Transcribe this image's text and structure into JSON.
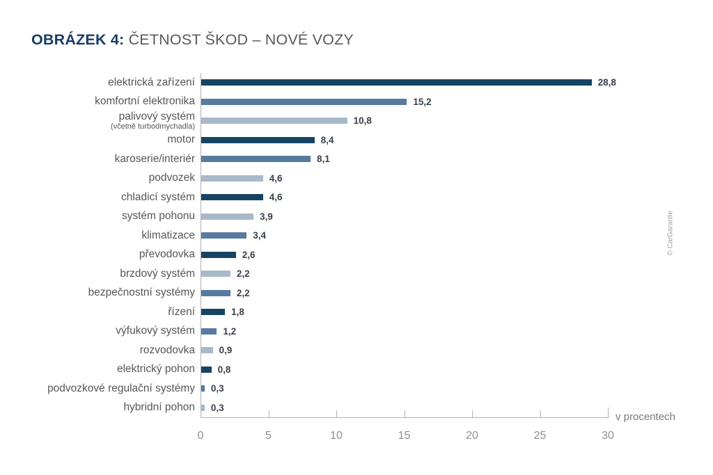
{
  "title": {
    "prefix": "OBRÁZEK 4: ",
    "main": "ČETNOST ŠKOD – NOVÉ VOZY"
  },
  "watermark": "© CarGarantie",
  "colors": {
    "dark": "#174464",
    "medium": "#567b9e",
    "light": "#a8b9ca",
    "axis_line": "#aeb0b2",
    "tick_text": "#8d8e90",
    "label_text": "#55565a",
    "value_text": "#3a414b",
    "title_prefix": "#1b3c66",
    "title_main": "#58595b"
  },
  "chart_data": {
    "type": "bar",
    "orientation": "horizontal",
    "title": "OBRÁZEK 4: ČETNOST ŠKOD – NOVÉ VOZY",
    "xlabel": "v procentech",
    "xlim": [
      0,
      30
    ],
    "xticks": [
      0,
      5,
      10,
      15,
      20,
      25,
      30
    ],
    "grid": false,
    "bars": [
      {
        "label": "elektrická zařízení",
        "sublabel": "",
        "value": 28.8,
        "display": "28,8",
        "color": "dark"
      },
      {
        "label": "komfortní elektronika",
        "sublabel": "",
        "value": 15.2,
        "display": "15,2",
        "color": "medium"
      },
      {
        "label": "palivový systém",
        "sublabel": "(včetně turbodmychadla)",
        "value": 10.8,
        "display": "10,8",
        "color": "light"
      },
      {
        "label": "motor",
        "sublabel": "",
        "value": 8.4,
        "display": "8,4",
        "color": "dark"
      },
      {
        "label": "karoserie/interiér",
        "sublabel": "",
        "value": 8.1,
        "display": "8,1",
        "color": "medium"
      },
      {
        "label": "podvozek",
        "sublabel": "",
        "value": 4.6,
        "display": "4,6",
        "color": "light"
      },
      {
        "label": "chladicí systém",
        "sublabel": "",
        "value": 4.6,
        "display": "4,6",
        "color": "dark"
      },
      {
        "label": "systém pohonu",
        "sublabel": "",
        "value": 3.9,
        "display": "3,9",
        "color": "light"
      },
      {
        "label": "klimatizace",
        "sublabel": "",
        "value": 3.4,
        "display": "3,4",
        "color": "medium"
      },
      {
        "label": "převodovka",
        "sublabel": "",
        "value": 2.6,
        "display": "2,6",
        "color": "dark"
      },
      {
        "label": "brzdový systém",
        "sublabel": "",
        "value": 2.2,
        "display": "2,2",
        "color": "light"
      },
      {
        "label": "bezpečnostní systémy",
        "sublabel": "",
        "value": 2.2,
        "display": "2,2",
        "color": "medium"
      },
      {
        "label": "řízení",
        "sublabel": "",
        "value": 1.8,
        "display": "1,8",
        "color": "dark"
      },
      {
        "label": "výfukový systém",
        "sublabel": "",
        "value": 1.2,
        "display": "1,2",
        "color": "medium"
      },
      {
        "label": "rozvodovka",
        "sublabel": "",
        "value": 0.9,
        "display": "0,9",
        "color": "light"
      },
      {
        "label": "elektrický pohon",
        "sublabel": "",
        "value": 0.8,
        "display": "0,8",
        "color": "dark"
      },
      {
        "label": "podvozkové regulační systémy",
        "sublabel": "",
        "value": 0.3,
        "display": "0,3",
        "color": "medium"
      },
      {
        "label": "hybridní pohon",
        "sublabel": "",
        "value": 0.3,
        "display": "0,3",
        "color": "light"
      }
    ]
  }
}
